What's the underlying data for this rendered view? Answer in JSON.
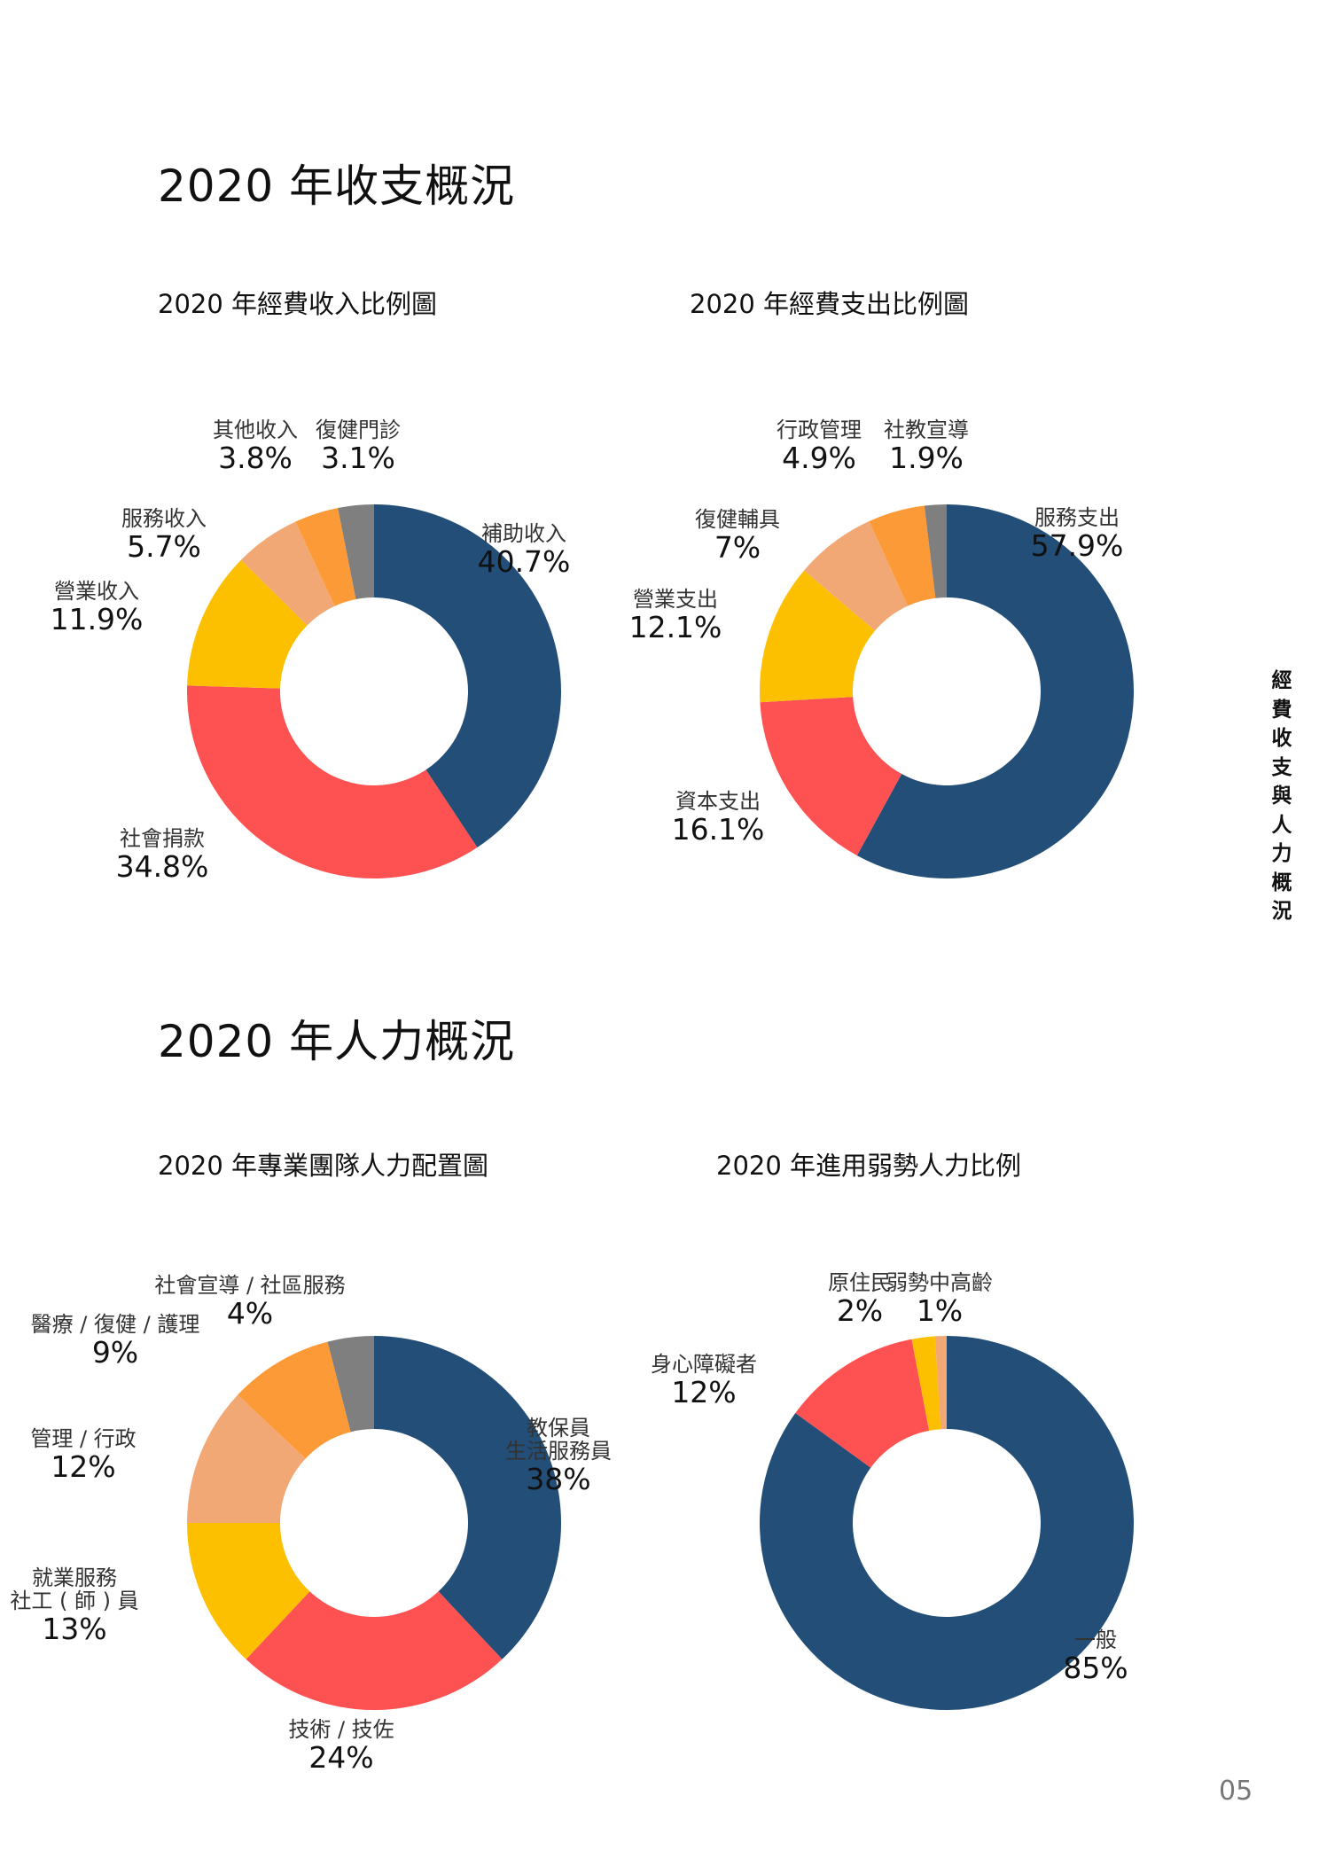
{
  "section1_title": "2020 年收支概況",
  "section2_title": "2020 年人力概況",
  "side_title": "經費收支與人力概況",
  "page_number": "05",
  "chart_data": [
    {
      "type": "pie",
      "title": "2020 年經費收入比例圖",
      "labels": [
        "補助收入",
        "社會捐款",
        "營業收入",
        "服務收入",
        "其他收入",
        "復健門診"
      ],
      "values": [
        40.7,
        34.8,
        11.9,
        5.7,
        3.8,
        3.1
      ],
      "value_labels": [
        "40.7%",
        "34.8%",
        "11.9%",
        "5.7%",
        "3.8%",
        "3.1%"
      ],
      "colors": [
        "#224e77",
        "#fe5151",
        "#fdc000",
        "#f2a874",
        "#fd9a38",
        "#7f7f7f"
      ]
    },
    {
      "type": "pie",
      "title": "2020 年經費支出比例圖",
      "labels": [
        "服務支出",
        "資本支出",
        "營業支出",
        "復健輔具",
        "行政管理",
        "社教宣導"
      ],
      "values": [
        57.9,
        16.1,
        12.1,
        7,
        4.9,
        1.9
      ],
      "value_labels": [
        "57.9%",
        "16.1%",
        "12.1%",
        "7%",
        "4.9%",
        "1.9%"
      ],
      "colors": [
        "#224e77",
        "#fe5151",
        "#fdc000",
        "#f2a874",
        "#fd9a38",
        "#7f7f7f"
      ]
    },
    {
      "type": "pie",
      "title": "2020 年專業團隊人力配置圖",
      "labels": [
        "教保員\n生活服務員",
        "技術 / 技佐",
        "就業服務\n社工 ( 師 ) 員",
        "管理 / 行政",
        "醫療 / 復健 / 護理",
        "社會宣導 / 社區服務"
      ],
      "values": [
        38,
        24,
        13,
        12,
        9,
        4
      ],
      "value_labels": [
        "38%",
        "24%",
        "13%",
        "12%",
        "9%",
        "4%"
      ],
      "colors": [
        "#224e77",
        "#fe5151",
        "#fdc000",
        "#f2a874",
        "#fd9a38",
        "#7f7f7f"
      ]
    },
    {
      "type": "pie",
      "title": "2020 年進用弱勢人力比例",
      "labels": [
        "一般",
        "身心障礙者",
        "原住民",
        "弱勢中高齡"
      ],
      "values": [
        85,
        12,
        2,
        1
      ],
      "value_labels": [
        "85%",
        "12%",
        "2%",
        "1%"
      ],
      "colors": [
        "#224e77",
        "#fe5151",
        "#fdc000",
        "#f2a874"
      ]
    }
  ]
}
